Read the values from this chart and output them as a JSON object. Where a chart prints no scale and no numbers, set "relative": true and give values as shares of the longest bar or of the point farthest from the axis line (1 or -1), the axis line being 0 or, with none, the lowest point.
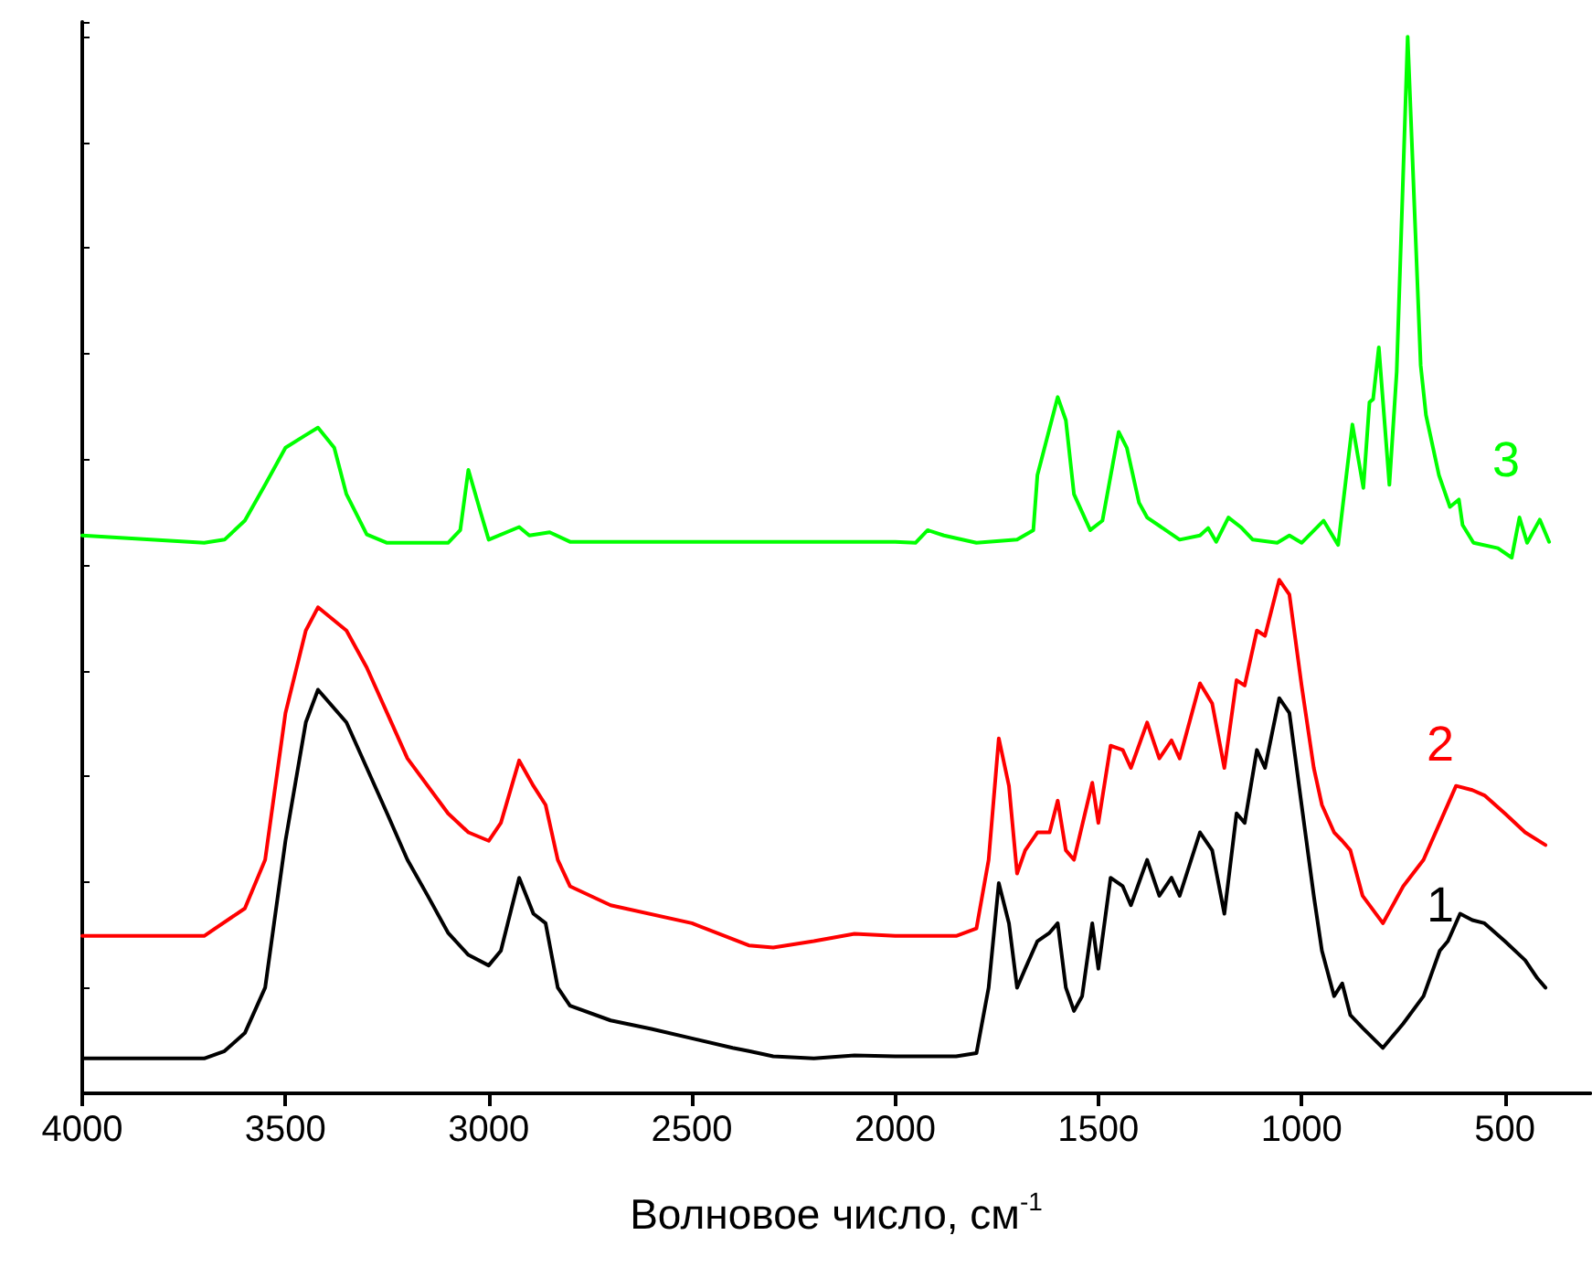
{
  "chart_data": {
    "type": "line",
    "relative": true,
    "xlabel": "Волновое число, см$^{-1}$",
    "xlim": [
      4000,
      290
    ],
    "xticks": [
      4000,
      3500,
      3000,
      2500,
      2000,
      1500,
      1000,
      500
    ],
    "grid": false,
    "marker": "none",
    "line_style": "solid",
    "series": [
      {
        "name": "1",
        "color": "#000000",
        "x": [
          4000,
          3700,
          3650,
          3600,
          3550,
          3500,
          3450,
          3420,
          3350,
          3300,
          3250,
          3200,
          3150,
          3100,
          3050,
          3000,
          2970,
          2925,
          2890,
          2860,
          2830,
          2800,
          2700,
          2600,
          2500,
          2400,
          2360,
          2300,
          2200,
          2100,
          2000,
          1850,
          1800,
          1770,
          1745,
          1720,
          1700,
          1680,
          1650,
          1620,
          1600,
          1580,
          1560,
          1540,
          1515,
          1500,
          1470,
          1440,
          1420,
          1380,
          1350,
          1320,
          1300,
          1250,
          1220,
          1190,
          1160,
          1140,
          1110,
          1090,
          1055,
          1030,
          1000,
          970,
          950,
          920,
          900,
          880,
          850,
          800,
          750,
          700,
          660,
          640,
          610,
          580,
          550,
          500,
          450,
          420,
          400
        ],
        "values": [
          0.033,
          0.033,
          0.04,
          0.057,
          0.1,
          0.239,
          0.351,
          0.382,
          0.351,
          0.308,
          0.265,
          0.221,
          0.187,
          0.152,
          0.131,
          0.121,
          0.135,
          0.204,
          0.17,
          0.161,
          0.1,
          0.083,
          0.069,
          0.061,
          0.052,
          0.043,
          0.04,
          0.035,
          0.033,
          0.036,
          0.035,
          0.035,
          0.038,
          0.1,
          0.199,
          0.161,
          0.1,
          0.118,
          0.144,
          0.152,
          0.161,
          0.1,
          0.078,
          0.092,
          0.161,
          0.118,
          0.204,
          0.196,
          0.178,
          0.221,
          0.187,
          0.204,
          0.187,
          0.247,
          0.23,
          0.17,
          0.265,
          0.256,
          0.325,
          0.308,
          0.374,
          0.36,
          0.273,
          0.187,
          0.135,
          0.092,
          0.104,
          0.074,
          0.062,
          0.043,
          0.066,
          0.092,
          0.135,
          0.144,
          0.17,
          0.164,
          0.161,
          0.144,
          0.126,
          0.109,
          0.1
        ]
      },
      {
        "name": "2",
        "color": "#ff0000",
        "x": [
          4000,
          3700,
          3600,
          3550,
          3500,
          3450,
          3420,
          3350,
          3300,
          3250,
          3200,
          3100,
          3050,
          3000,
          2970,
          2925,
          2890,
          2860,
          2830,
          2800,
          2700,
          2500,
          2360,
          2300,
          2200,
          2100,
          2000,
          1850,
          1800,
          1770,
          1745,
          1720,
          1700,
          1680,
          1650,
          1620,
          1600,
          1580,
          1560,
          1515,
          1500,
          1470,
          1440,
          1420,
          1380,
          1350,
          1320,
          1300,
          1250,
          1220,
          1190,
          1160,
          1140,
          1110,
          1090,
          1055,
          1030,
          1000,
          970,
          950,
          920,
          900,
          880,
          850,
          800,
          750,
          700,
          660,
          620,
          580,
          550,
          500,
          450,
          400
        ],
        "values": [
          0.149,
          0.149,
          0.175,
          0.221,
          0.36,
          0.438,
          0.46,
          0.438,
          0.403,
          0.36,
          0.317,
          0.265,
          0.247,
          0.239,
          0.256,
          0.315,
          0.291,
          0.273,
          0.221,
          0.196,
          0.178,
          0.161,
          0.14,
          0.138,
          0.144,
          0.151,
          0.149,
          0.149,
          0.156,
          0.221,
          0.336,
          0.291,
          0.208,
          0.23,
          0.247,
          0.247,
          0.277,
          0.23,
          0.221,
          0.294,
          0.256,
          0.329,
          0.325,
          0.308,
          0.351,
          0.317,
          0.334,
          0.317,
          0.388,
          0.369,
          0.308,
          0.391,
          0.386,
          0.438,
          0.433,
          0.486,
          0.472,
          0.386,
          0.308,
          0.273,
          0.247,
          0.239,
          0.23,
          0.187,
          0.161,
          0.196,
          0.221,
          0.256,
          0.291,
          0.287,
          0.282,
          0.265,
          0.247,
          0.235
        ]
      },
      {
        "name": "3",
        "color": "#00ff00",
        "x": [
          4000,
          3700,
          3650,
          3600,
          3550,
          3500,
          3450,
          3420,
          3380,
          3350,
          3300,
          3250,
          3100,
          3070,
          3050,
          3020,
          3000,
          2925,
          2900,
          2850,
          2800,
          2500,
          2000,
          1950,
          1920,
          1880,
          1800,
          1700,
          1660,
          1650,
          1600,
          1580,
          1560,
          1520,
          1490,
          1450,
          1430,
          1400,
          1380,
          1300,
          1250,
          1230,
          1210,
          1180,
          1150,
          1120,
          1060,
          1030,
          1000,
          946,
          910,
          875,
          848,
          833,
          824,
          810,
          784,
          766,
          739,
          707,
          694,
          662,
          635,
          613,
          604,
          577,
          517,
          483,
          464,
          445,
          414,
          391
        ],
        "values": [
          0.528,
          0.521,
          0.524,
          0.542,
          0.576,
          0.611,
          0.623,
          0.63,
          0.611,
          0.567,
          0.529,
          0.521,
          0.521,
          0.533,
          0.59,
          0.55,
          0.524,
          0.536,
          0.528,
          0.531,
          0.522,
          0.522,
          0.522,
          0.521,
          0.533,
          0.528,
          0.521,
          0.524,
          0.533,
          0.585,
          0.659,
          0.637,
          0.567,
          0.533,
          0.542,
          0.626,
          0.611,
          0.559,
          0.545,
          0.524,
          0.528,
          0.535,
          0.522,
          0.545,
          0.536,
          0.524,
          0.521,
          0.528,
          0.521,
          0.542,
          0.519,
          0.633,
          0.573,
          0.654,
          0.657,
          0.706,
          0.576,
          0.683,
          1,
          0.689,
          0.642,
          0.585,
          0.555,
          0.562,
          0.538,
          0.521,
          0.516,
          0.507,
          0.545,
          0.521,
          0.543,
          0.522
        ]
      }
    ]
  }
}
